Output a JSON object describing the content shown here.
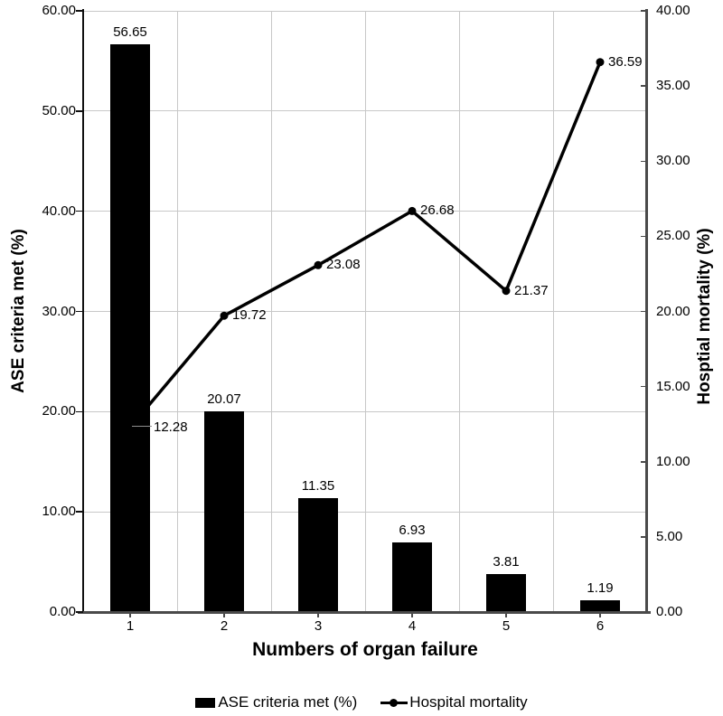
{
  "chart_data": {
    "type": "combo-bar-line",
    "categories": [
      "1",
      "2",
      "3",
      "4",
      "5",
      "6"
    ],
    "xlabel": "Numbers of organ failure",
    "series": [
      {
        "name": "ASE criteria met (%)",
        "type": "bar",
        "axis": "left",
        "color": "#000000",
        "values": [
          56.65,
          20.07,
          11.35,
          6.93,
          3.81,
          1.19
        ],
        "labels": [
          "56.65",
          "20.07",
          "11.35",
          "6.93",
          "3.81",
          "1.19"
        ]
      },
      {
        "name": "Hospital mortality",
        "type": "line",
        "axis": "right",
        "color": "#000000",
        "values": [
          12.28,
          19.72,
          23.08,
          26.68,
          21.37,
          36.59
        ],
        "labels": [
          "12.28",
          "19.72",
          "23.08",
          "26.68",
          "21.37",
          "36.59"
        ]
      }
    ],
    "left_axis": {
      "label": "ASE criteria met (%)",
      "min": 0,
      "max": 60,
      "step": 10,
      "ticks": [
        "0.00",
        "10.00",
        "20.00",
        "30.00",
        "40.00",
        "50.00",
        "60.00"
      ]
    },
    "right_axis": {
      "label": "Hosptial mortality (%)",
      "min": 0,
      "max": 40,
      "step": 5,
      "ticks": [
        "0.00",
        "5.00",
        "10.00",
        "15.00",
        "20.00",
        "25.00",
        "30.00",
        "35.00",
        "40.00"
      ]
    },
    "grid": true,
    "legend": {
      "position": "bottom",
      "items": [
        {
          "label": "ASE criteria met (%)",
          "swatch": "bar"
        },
        {
          "label": "Hospital mortality",
          "swatch": "line-dot"
        }
      ]
    },
    "colors": {
      "bar": "#000000",
      "line": "#000000",
      "grid": "#c8c8c8",
      "axis_dark": "#4a4a4a",
      "axis_black": "#111111",
      "leader": "#909090"
    }
  }
}
